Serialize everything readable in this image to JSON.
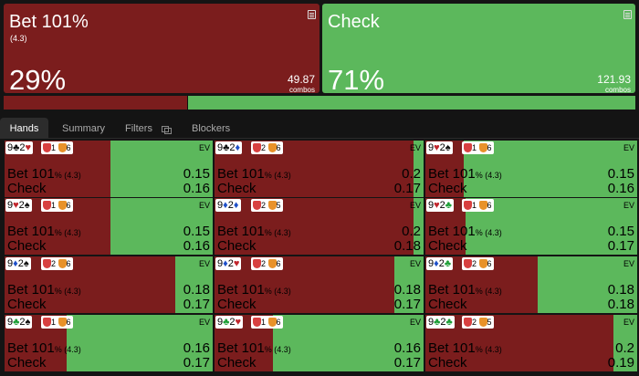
{
  "summary": {
    "bet": {
      "title": "Bet 101%",
      "subtitle": "(4.3)",
      "percent": "29%",
      "combos": "49.87",
      "combos_label": "combos"
    },
    "check": {
      "title": "Check",
      "percent": "71%",
      "combos": "121.93",
      "combos_label": "combos"
    }
  },
  "frequency": {
    "bet_fraction": 0.29,
    "check_fraction": 0.71
  },
  "tabs": [
    {
      "label": "Hands",
      "active": true
    },
    {
      "label": "Summary",
      "active": false
    },
    {
      "label": "Filters",
      "active": false
    },
    {
      "label": "Blockers",
      "active": false
    }
  ],
  "cell_labels": {
    "ev": "EV",
    "bet": "Bet 101",
    "bet_size": "% (4.3)",
    "check": "Check"
  },
  "hands": [
    {
      "rank1": "9",
      "suit1": "♣",
      "color1": "s-black",
      "rank2": "2",
      "suit2": "♥",
      "color2": "s-red",
      "blk1": "1",
      "blk2": "6",
      "bet_ev": "0.15",
      "check_ev": "0.16",
      "check_freq": 0.49
    },
    {
      "rank1": "9",
      "suit1": "♣",
      "color1": "s-black",
      "rank2": "2",
      "suit2": "♦",
      "color2": "s-blue",
      "blk1": "2",
      "blk2": "6",
      "bet_ev": "0.2",
      "check_ev": "0.17",
      "check_freq": 0.05
    },
    {
      "rank1": "9",
      "suit1": "♥",
      "color1": "s-red",
      "rank2": "2",
      "suit2": "♠",
      "color2": "s-black",
      "blk1": "1",
      "blk2": "6",
      "bet_ev": "0.15",
      "check_ev": "0.16",
      "check_freq": 0.82
    },
    {
      "rank1": "9",
      "suit1": "♥",
      "color1": "s-red",
      "rank2": "2",
      "suit2": "♠",
      "color2": "s-black",
      "blk1": "1",
      "blk2": "6",
      "bet_ev": "0.15",
      "check_ev": "0.16",
      "check_freq": 0.49
    },
    {
      "rank1": "9",
      "suit1": "♦",
      "color1": "s-blue",
      "rank2": "2",
      "suit2": "♦",
      "color2": "s-blue",
      "blk1": "2",
      "blk2": "5",
      "bet_ev": "0.2",
      "check_ev": "0.18",
      "check_freq": 0.05
    },
    {
      "rank1": "9",
      "suit1": "♥",
      "color1": "s-red",
      "rank2": "2",
      "suit2": "♣",
      "color2": "s-green",
      "blk1": "1",
      "blk2": "6",
      "bet_ev": "0.15",
      "check_ev": "0.17",
      "check_freq": 0.81
    },
    {
      "rank1": "9",
      "suit1": "♦",
      "color1": "s-blue",
      "rank2": "2",
      "suit2": "♠",
      "color2": "s-black",
      "blk1": "2",
      "blk2": "6",
      "bet_ev": "0.18",
      "check_ev": "0.17",
      "check_freq": 0.18
    },
    {
      "rank1": "9",
      "suit1": "♦",
      "color1": "s-blue",
      "rank2": "2",
      "suit2": "♥",
      "color2": "s-red",
      "blk1": "2",
      "blk2": "6",
      "bet_ev": "0.18",
      "check_ev": "0.17",
      "check_freq": 0.14
    },
    {
      "rank1": "9",
      "suit1": "♦",
      "color1": "s-blue",
      "rank2": "2",
      "suit2": "♣",
      "color2": "s-green",
      "blk1": "2",
      "blk2": "6",
      "bet_ev": "0.18",
      "check_ev": "0.18",
      "check_freq": 0.47
    },
    {
      "rank1": "9",
      "suit1": "♣",
      "color1": "s-green",
      "rank2": "2",
      "suit2": "♠",
      "color2": "s-black",
      "blk1": "1",
      "blk2": "6",
      "bet_ev": "0.16",
      "check_ev": "0.17",
      "check_freq": 0.7
    },
    {
      "rank1": "9",
      "suit1": "♣",
      "color1": "s-green",
      "rank2": "2",
      "suit2": "♥",
      "color2": "s-red",
      "blk1": "1",
      "blk2": "6",
      "bet_ev": "0.16",
      "check_ev": "0.17",
      "check_freq": 0.72
    },
    {
      "rank1": "9",
      "suit1": "♣",
      "color1": "s-green",
      "rank2": "2",
      "suit2": "♣",
      "color2": "s-green",
      "blk1": "2",
      "blk2": "5",
      "bet_ev": "0.2",
      "check_ev": "0.19",
      "check_freq": 0.11
    }
  ]
}
